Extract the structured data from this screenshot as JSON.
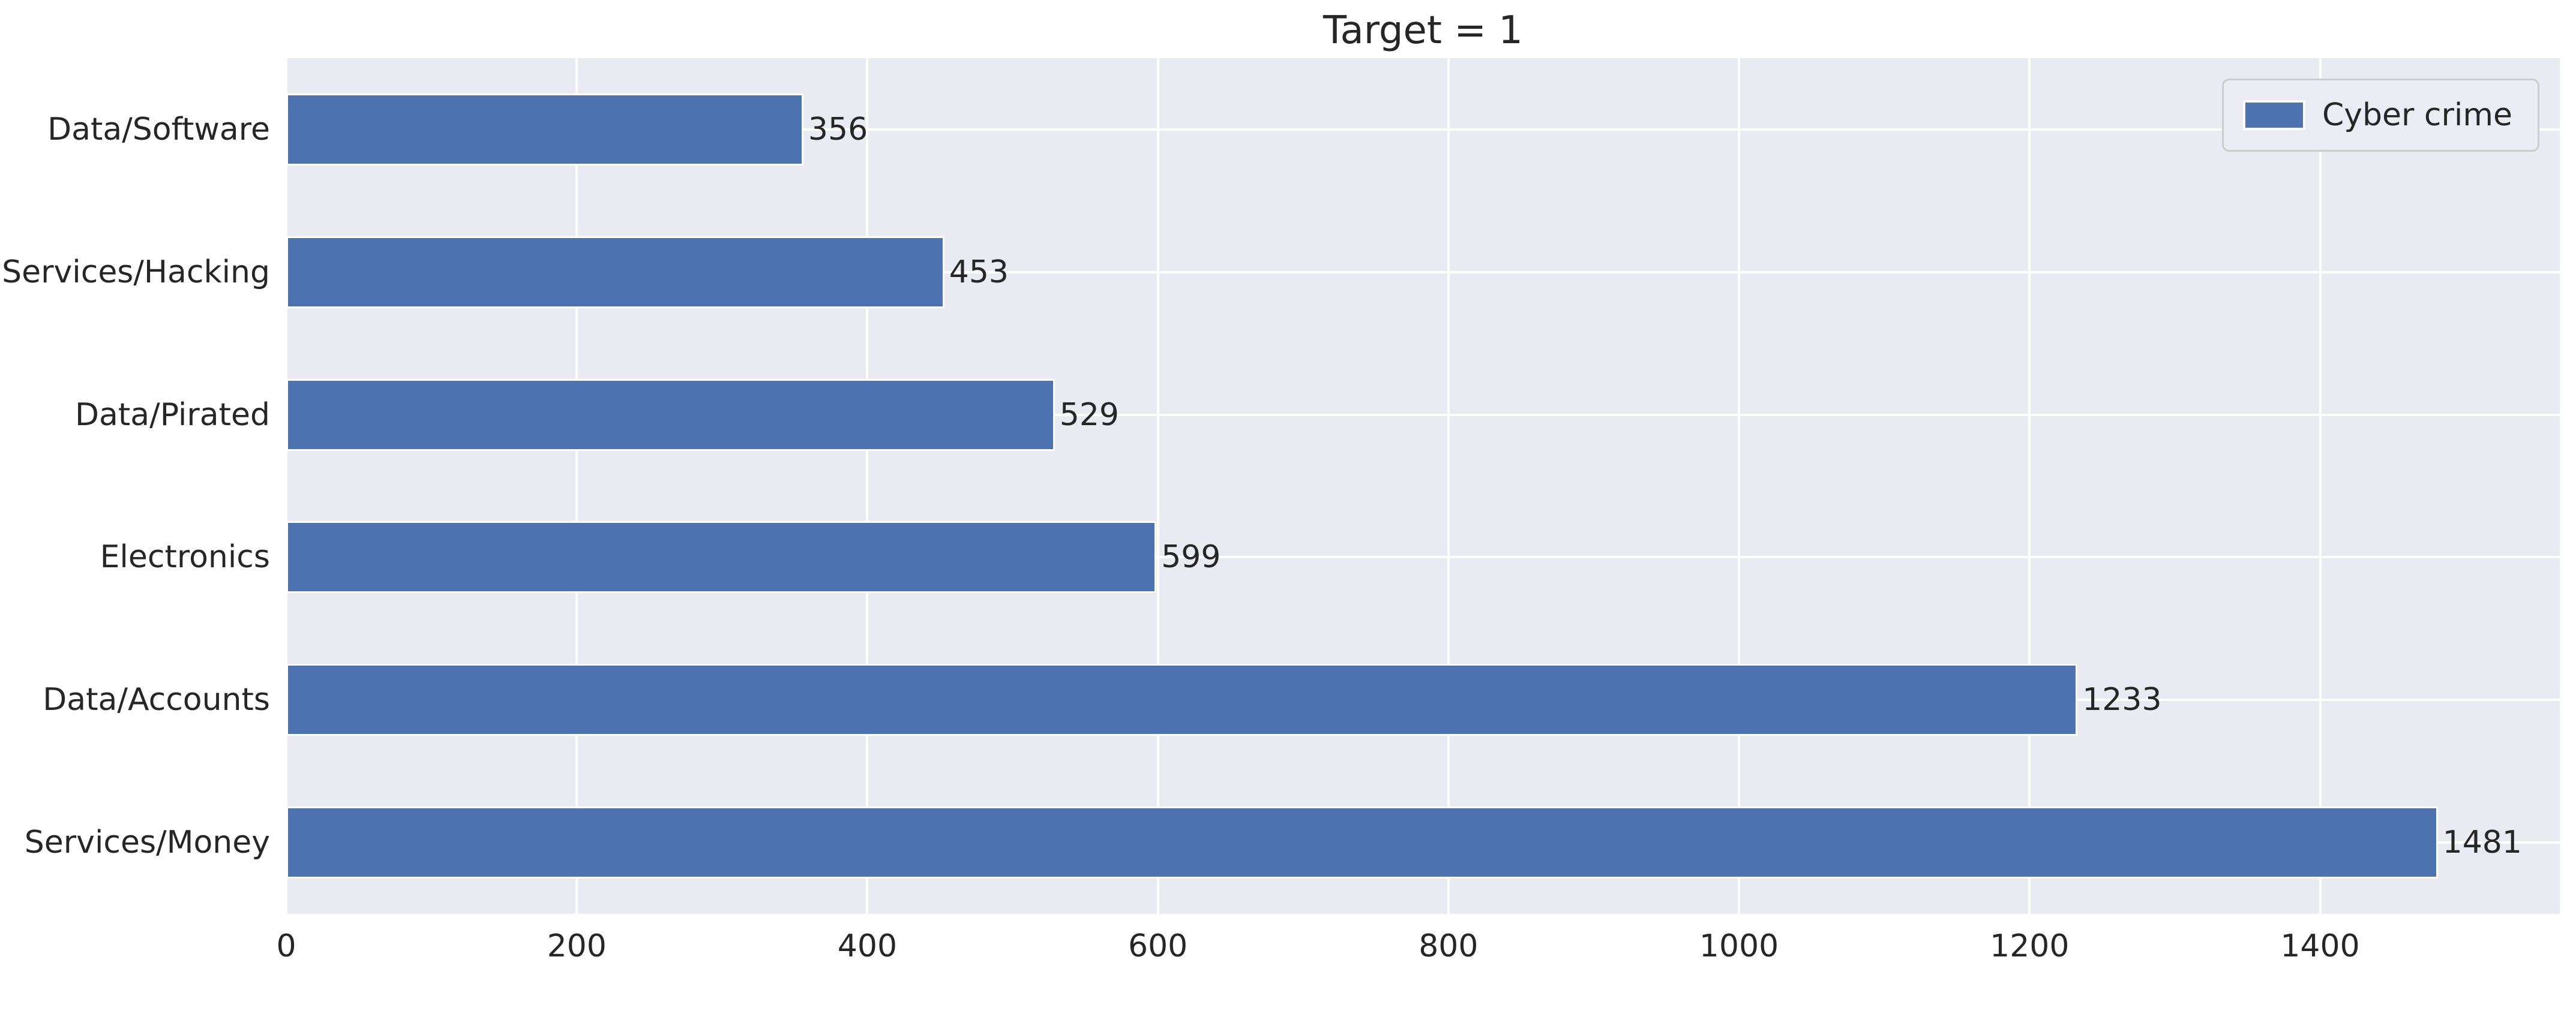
{
  "chart_data": {
    "type": "bar",
    "orientation": "horizontal",
    "title": "Target = 1",
    "categories": [
      "Data/Software",
      "Services/Hacking",
      "Data/Pirated",
      "Electronics",
      "Data/Accounts",
      "Services/Money"
    ],
    "values": [
      356,
      453,
      529,
      599,
      1233,
      1481
    ],
    "bar_labels": [
      "356",
      "453",
      "529",
      "599",
      "1233",
      "1481"
    ],
    "series": [
      {
        "name": "Cyber crime",
        "values": [
          356,
          453,
          529,
          599,
          1233,
          1481
        ]
      }
    ],
    "legend": {
      "entries": [
        "Cyber crime"
      ],
      "position": "upper right"
    },
    "x_ticks": [
      0,
      200,
      400,
      600,
      800,
      1000,
      1200,
      1400
    ],
    "x_tick_labels": [
      "0",
      "200",
      "400",
      "600",
      "800",
      "1000",
      "1200",
      "1400"
    ],
    "xlim": [
      0,
      1565
    ],
    "xlabel": "",
    "ylabel": "",
    "grid": true,
    "colors": {
      "bar": "#4c72b0",
      "plot_background": "#eaeaf2",
      "gridline": "#ffffff",
      "text": "#262626",
      "legend_background": "#ececf4",
      "legend_border": "#cccccc"
    }
  }
}
